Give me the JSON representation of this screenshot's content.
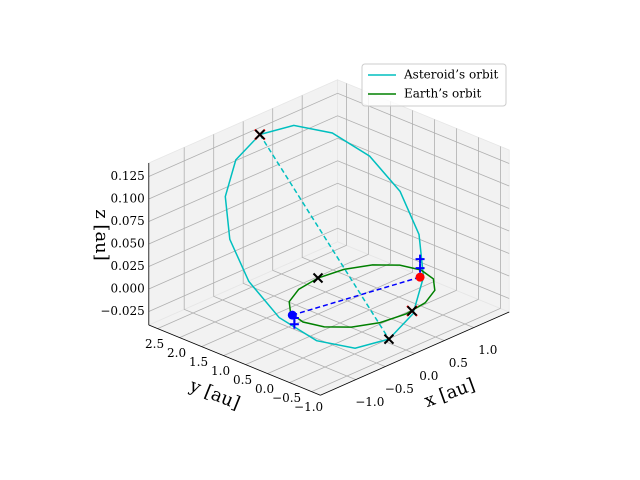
{
  "chart_data": {
    "type": "line3d",
    "xlabel": "x [au]",
    "ylabel": "y [au]",
    "zlabel": "z [au]",
    "xlim": [
      -1.6,
      1.6
    ],
    "ylim": [
      -1.2,
      2.7
    ],
    "zlim": [
      -0.04,
      0.14
    ],
    "xticks": [
      {
        "value": -1,
        "label": "−1.0"
      },
      {
        "value": -0.5,
        "label": "−0.5"
      },
      {
        "value": 0,
        "label": "0.0"
      },
      {
        "value": 0.5,
        "label": "0.5"
      },
      {
        "value": 1,
        "label": "1.0"
      }
    ],
    "yticks": [
      {
        "value": -1,
        "label": "−1.0"
      },
      {
        "value": -0.5,
        "label": "−0.5"
      },
      {
        "value": 0,
        "label": "0.0"
      },
      {
        "value": 0.5,
        "label": "0.5"
      },
      {
        "value": 1,
        "label": "1.0"
      },
      {
        "value": 1.5,
        "label": "1.5"
      },
      {
        "value": 2,
        "label": "2.0"
      },
      {
        "value": 2.5,
        "label": "2.5"
      }
    ],
    "zticks": [
      {
        "value": -0.025,
        "label": "−0.025"
      },
      {
        "value": 0,
        "label": "0.000"
      },
      {
        "value": 0.025,
        "label": "0.025"
      },
      {
        "value": 0.05,
        "label": "0.050"
      },
      {
        "value": 0.075,
        "label": "0.075"
      },
      {
        "value": 0.1,
        "label": "0.100"
      },
      {
        "value": 0.125,
        "label": "0.125"
      }
    ],
    "grid": true,
    "legend": "upper right",
    "series": [
      {
        "name": "Asteroid’s orbit",
        "color": "#00bfbf",
        "x": [
          -0.09,
          0.494,
          0.998,
          1.345,
          1.482,
          1.389,
          1.078,
          0.6,
          0.024,
          -0.56,
          -1.064,
          -1.411,
          -1.548,
          -1.455,
          -1.144,
          -0.666
        ],
        "y": [
          2.2,
          2.213,
          2.014,
          1.63,
          1.122,
          0.566,
          0.048,
          -0.355,
          -0.58,
          -0.593,
          -0.394,
          -0.01,
          0.498,
          1.054,
          1.572,
          1.975
        ],
        "z": [
          0.138,
          0.131,
          0.112,
          0.084,
          0.051,
          0.017,
          -0.011,
          -0.03,
          -0.037,
          -0.03,
          -0.011,
          0.017,
          0.051,
          0.084,
          0.112,
          0.131
        ]
      },
      {
        "name": "Earth’s orbit",
        "color": "#008000",
        "x": [
          1,
          0.924,
          0.707,
          0.383,
          0,
          -0.383,
          -0.707,
          -0.924,
          -1,
          -0.924,
          -0.707,
          -0.383,
          0,
          0.383,
          0.707,
          0.924
        ],
        "y": [
          0,
          0.383,
          0.707,
          0.924,
          1,
          0.924,
          0.707,
          0.383,
          0,
          -0.383,
          -0.707,
          -0.924,
          -1,
          -0.924,
          -0.707,
          -0.383
        ],
        "z": [
          0,
          0,
          0,
          0,
          0,
          0,
          0,
          0,
          0,
          0,
          0,
          0,
          0,
          0,
          0,
          0
        ]
      }
    ],
    "lines": [
      {
        "color": "#00bfbf",
        "linestyle": "dashed",
        "x": [
          -0.09,
          0.024
        ],
        "y": [
          2.2,
          -0.58
        ],
        "z": [
          0.138,
          -0.037
        ]
      },
      {
        "color": "#0000ff",
        "linestyle": "dashed",
        "x": [
          -0.95,
          0.85
        ],
        "y": [
          0.31,
          -0.18
        ],
        "z": [
          0,
          0
        ]
      }
    ],
    "points": [
      {
        "marker": "x",
        "color": "#ff0000",
        "x": -0.09,
        "y": 2.2,
        "z": 0.138
      },
      {
        "marker": "x",
        "color": "#000000",
        "x": -0.09,
        "y": 2.2,
        "z": 0.138
      },
      {
        "marker": "x",
        "color": "#000000",
        "x": 0.024,
        "y": -0.58,
        "z": -0.037
      },
      {
        "marker": "x",
        "color": "#000000",
        "x": 0,
        "y": 1,
        "z": 0
      },
      {
        "marker": "x",
        "color": "#ff0000",
        "x": 0.11,
        "y": -0.99,
        "z": 0
      },
      {
        "marker": "x",
        "color": "#000000",
        "x": 0.11,
        "y": -0.99,
        "z": 0
      },
      {
        "marker": "o",
        "color": "#0000ff",
        "x": -0.95,
        "y": 0.31,
        "z": 0
      },
      {
        "marker": "o",
        "color": "#ff0000",
        "x": 0.85,
        "y": -0.18,
        "z": 0
      },
      {
        "marker": "+",
        "color": "#0000ff",
        "x": -0.9,
        "y": 0.33,
        "z": -0.005
      },
      {
        "marker": "+",
        "color": "#0000ff",
        "x": -0.9,
        "y": 0.33,
        "z": -0.012
      },
      {
        "marker": "+",
        "color": "#0000ff",
        "x": 0.85,
        "y": -0.18,
        "z": 0.02
      },
      {
        "marker": "+",
        "color": "#0000ff",
        "x": 0.85,
        "y": -0.18,
        "z": 0.01
      }
    ]
  }
}
